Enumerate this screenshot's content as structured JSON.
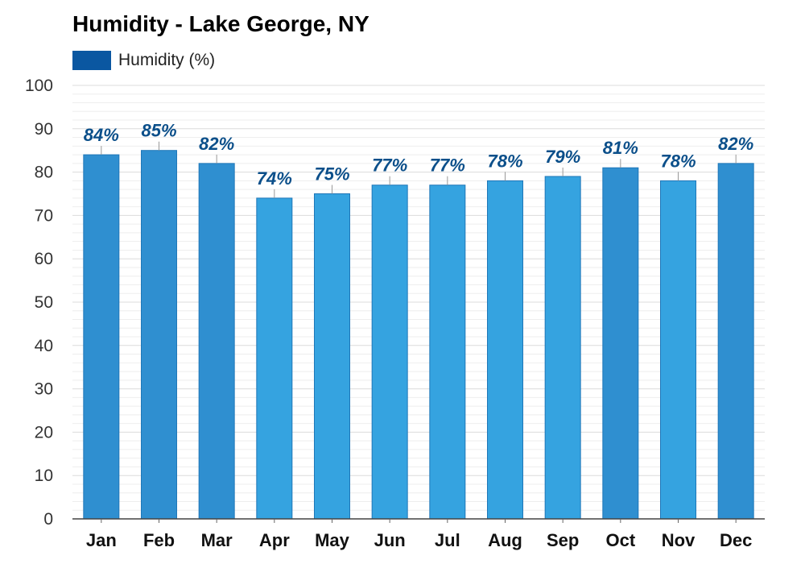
{
  "chart_data": {
    "type": "bar",
    "title": "Humidity - Lake George, NY",
    "categories": [
      "Jan",
      "Feb",
      "Mar",
      "Apr",
      "May",
      "Jun",
      "Jul",
      "Aug",
      "Sep",
      "Oct",
      "Nov",
      "Dec"
    ],
    "series": [
      {
        "name": "Humidity (%)",
        "values": [
          84,
          85,
          82,
          74,
          75,
          77,
          77,
          78,
          79,
          81,
          78,
          82
        ],
        "labels": [
          "84%",
          "85%",
          "82%",
          "74%",
          "75%",
          "77%",
          "77%",
          "78%",
          "79%",
          "81%",
          "78%",
          "82%"
        ]
      }
    ],
    "y_ticks": [
      "0",
      "10",
      "20",
      "30",
      "40",
      "50",
      "60",
      "70",
      "80",
      "90",
      "100"
    ],
    "xlabel": "",
    "ylabel": "",
    "ylim": [
      0,
      100
    ],
    "grid": true,
    "legend_position": "top-left",
    "colors": {
      "legend": "#0a57a1",
      "bar_light": "#35a3e0",
      "bar_dark": "#2f8fd0",
      "bar_edge": "#1f77b8",
      "label": "#0b4f8a"
    }
  }
}
